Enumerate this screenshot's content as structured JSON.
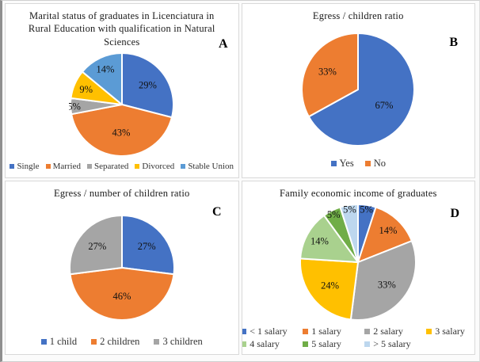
{
  "figure": {
    "description": "Four pie charts of graduate survey results",
    "background": "#ffffff",
    "slice_divider_color": "#ffffff"
  },
  "chart_data": [
    {
      "panel_letter": "A",
      "type": "pie",
      "title": "Marital status of graduates in Licenciatura in Rural Education with qualification in Natural Sciences",
      "start_angle_deg": 0,
      "direction": "clockwise",
      "legend_position": "bottom",
      "slices": [
        {
          "label": "Single",
          "value": 29,
          "pct_label": "29%",
          "color": "#4472C4"
        },
        {
          "label": "Married",
          "value": 43,
          "pct_label": "43%",
          "color": "#ED7D31"
        },
        {
          "label": "Separated",
          "value": 5,
          "pct_label": "5%",
          "color": "#A5A5A5"
        },
        {
          "label": "Divorced",
          "value": 9,
          "pct_label": "9%",
          "color": "#FFC000"
        },
        {
          "label": "Stable Union",
          "value": 14,
          "pct_label": "14%",
          "color": "#5B9BD5"
        }
      ]
    },
    {
      "panel_letter": "B",
      "type": "pie",
      "title": "Egress / children ratio",
      "start_angle_deg": 0,
      "direction": "clockwise",
      "legend_position": "bottom",
      "slices": [
        {
          "label": "Yes",
          "value": 67,
          "pct_label": "67%",
          "color": "#4472C4"
        },
        {
          "label": "No",
          "value": 33,
          "pct_label": "33%",
          "color": "#ED7D31"
        }
      ]
    },
    {
      "panel_letter": "C",
      "type": "pie",
      "title": "Egress / number of children ratio",
      "start_angle_deg": 0,
      "direction": "clockwise",
      "legend_position": "bottom",
      "slices": [
        {
          "label": "1 child",
          "value": 27,
          "pct_label": "27%",
          "color": "#4472C4"
        },
        {
          "label": "2 children",
          "value": 46,
          "pct_label": "46%",
          "color": "#ED7D31"
        },
        {
          "label": "3 children",
          "value": 27,
          "pct_label": "27%",
          "color": "#A5A5A5"
        }
      ]
    },
    {
      "panel_letter": "D",
      "type": "pie",
      "title": "Family economic income of graduates",
      "start_angle_deg": 0,
      "direction": "clockwise",
      "legend_position": "bottom",
      "slices": [
        {
          "label": "< 1 salary",
          "value": 5,
          "pct_label": "5%",
          "color": "#4472C4"
        },
        {
          "label": "1 salary",
          "value": 14,
          "pct_label": "14%",
          "color": "#ED7D31"
        },
        {
          "label": "2 salary",
          "value": 33,
          "pct_label": "33%",
          "color": "#A5A5A5"
        },
        {
          "label": "3 salary",
          "value": 24,
          "pct_label": "24%",
          "color": "#FFC000"
        },
        {
          "label": "4 salary",
          "value": 14,
          "pct_label": "14%",
          "color": "#A9D18E"
        },
        {
          "label": "5 salary",
          "value": 5,
          "pct_label": "5%",
          "color": "#70AD47"
        },
        {
          "label": "> 5 salary",
          "value": 5,
          "pct_label": "5%",
          "color": "#BDD7EE"
        }
      ]
    }
  ]
}
